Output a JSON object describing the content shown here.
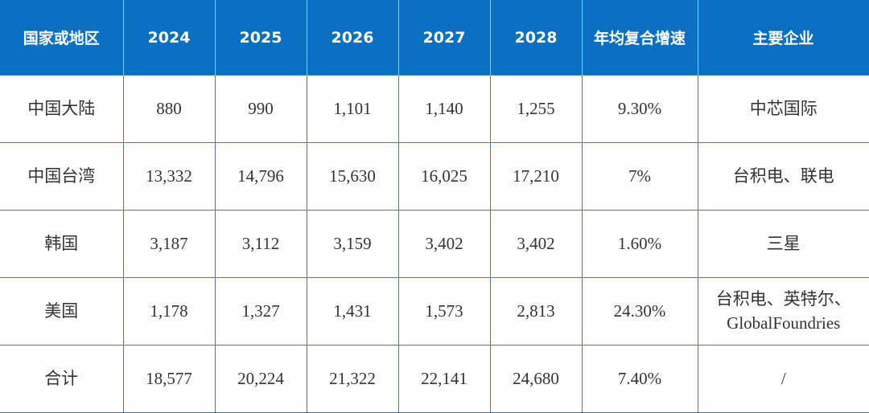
{
  "table": {
    "header": [
      "国家或地区",
      "2024",
      "2025",
      "2026",
      "2027",
      "2028",
      "年均复合增速",
      "主要企业"
    ],
    "rows": [
      [
        "中国大陆",
        "880",
        "990",
        "1,101",
        "1,140",
        "1,255",
        "9.30%",
        "中芯国际"
      ],
      [
        "中国台湾",
        "13,332",
        "14,796",
        "15,630",
        "16,025",
        "17,210",
        "7%",
        "台积电、联电"
      ],
      [
        "韩国",
        "3,187",
        "3,112",
        "3,159",
        "3,402",
        "3,402",
        "1.60%",
        "三星"
      ],
      [
        "美国",
        "1,178",
        "1,327",
        "1,431",
        "1,573",
        "2,813",
        "24.30%",
        "台积电、英特尔、GlobalFoundries"
      ],
      [
        "合计",
        "18,577",
        "20,224",
        "21,322",
        "22,141",
        "24,680",
        "7.40%",
        "/"
      ]
    ]
  }
}
